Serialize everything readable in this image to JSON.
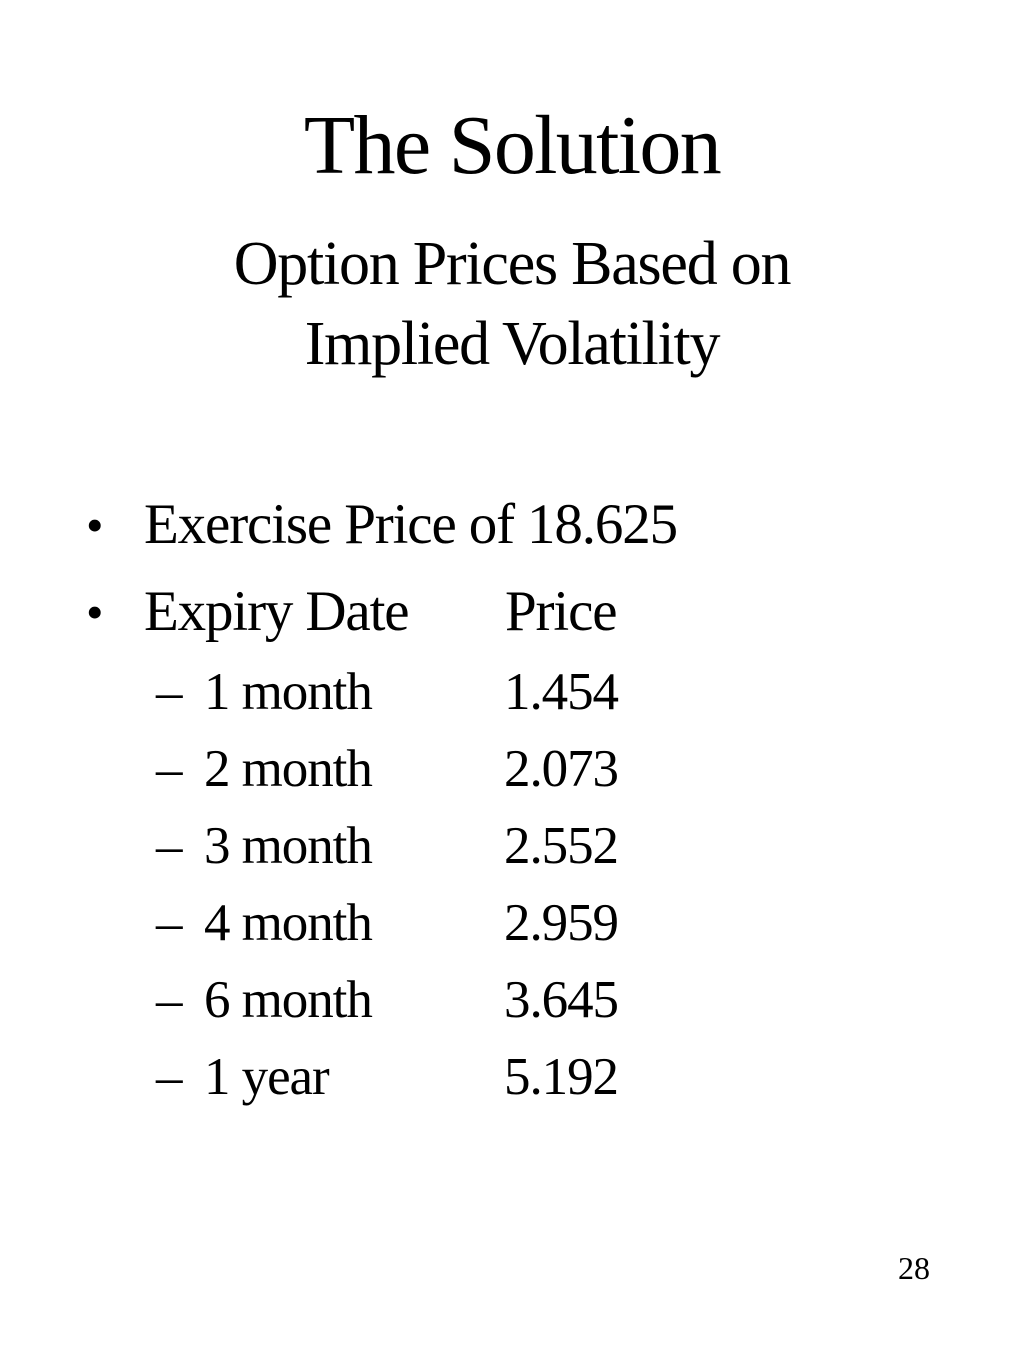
{
  "slide": {
    "title": "The Solution",
    "subtitle_line1": "Option Prices Based on",
    "subtitle_line2": "Implied Volatility",
    "bullet_glyph": "•",
    "dash_glyph": "–",
    "bullet1_text": "Exercise Price of 18.625",
    "bullet2": {
      "label": "Expiry Date",
      "value_header": "Price"
    },
    "exercise_price": "18.625",
    "rows": [
      {
        "label": "1 month",
        "price": "1.454"
      },
      {
        "label": "2 month",
        "price": "2.073"
      },
      {
        "label": "3 month",
        "price": "2.552"
      },
      {
        "label": "4 month",
        "price": "2.959"
      },
      {
        "label": "6 month",
        "price": "3.645"
      },
      {
        "label": "1 year",
        "price": "5.192"
      }
    ],
    "page_number": "28",
    "colors": {
      "background": "#ffffff",
      "text": "#000000"
    }
  }
}
